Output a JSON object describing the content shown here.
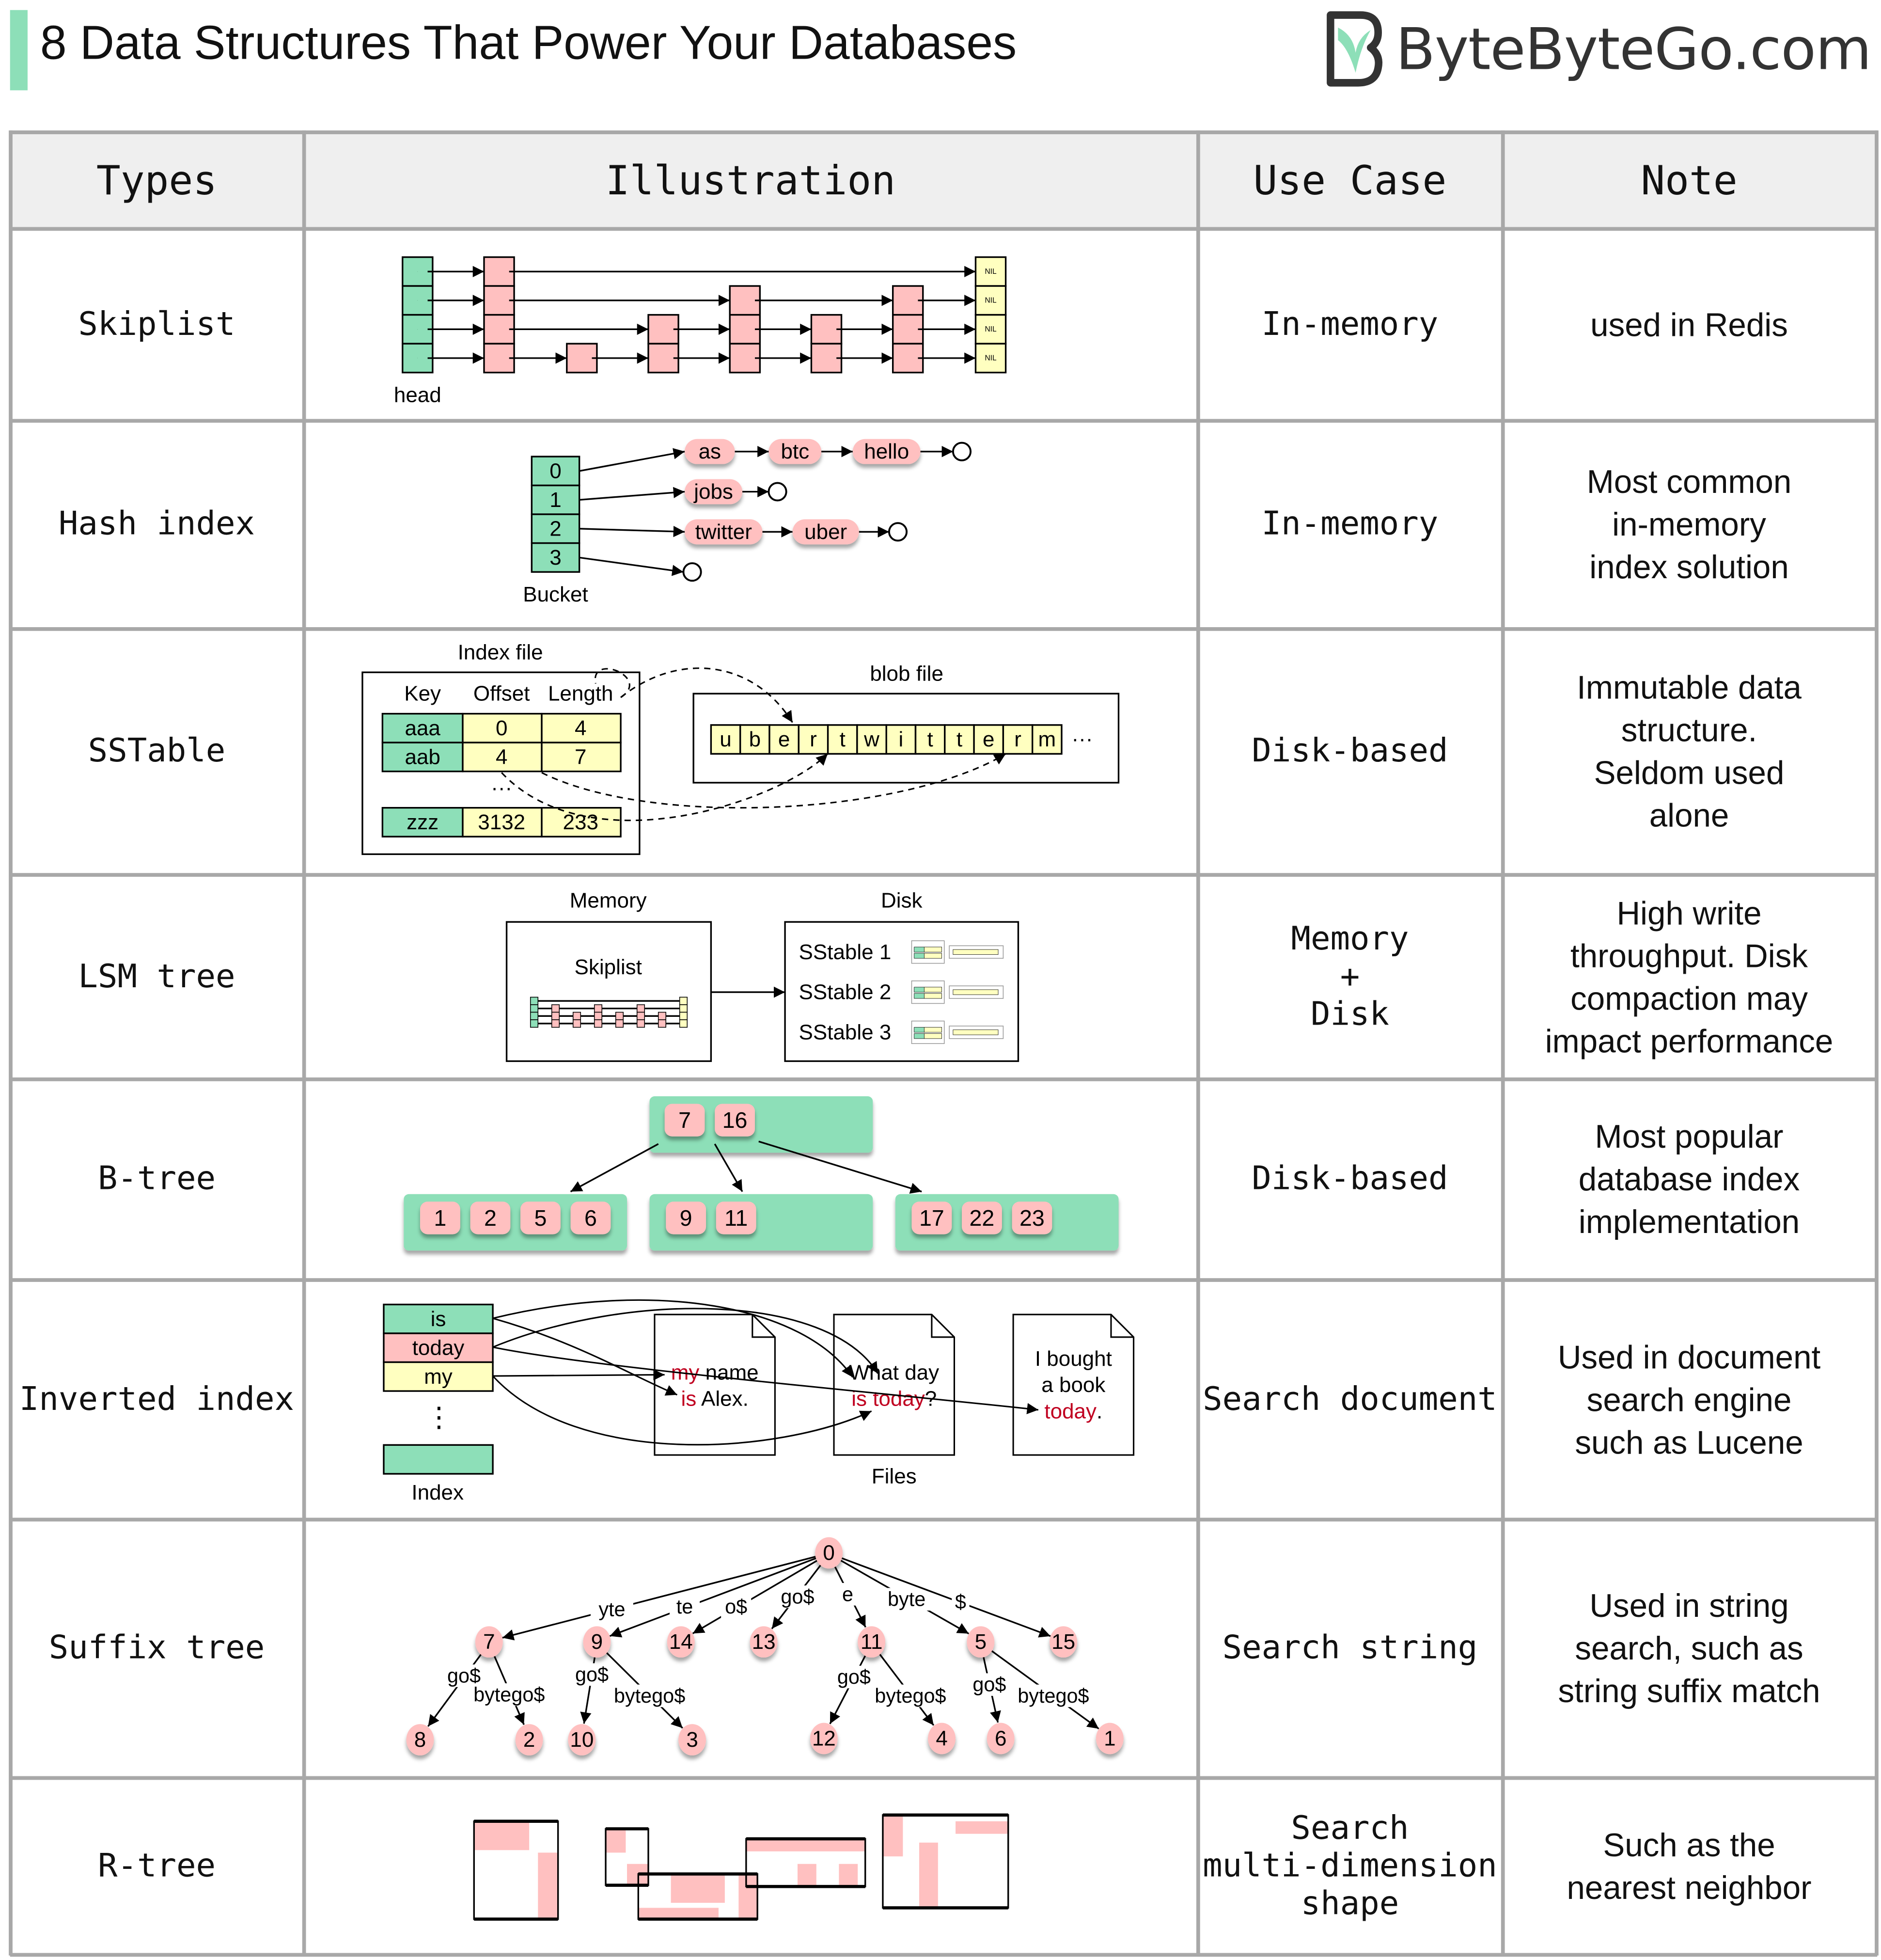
{
  "title": "8 Data Structures That Power Your Databases",
  "logo": {
    "text": "ByteByteGo.com",
    "icon": "bytebytego-logo-icon"
  },
  "colors": {
    "green": "#8ddfb8",
    "pink": "#ffc0c0",
    "yellow": "#ffffc0",
    "accent_red": "#c00020",
    "grid": "#a8a8a8",
    "header_bg": "#efefef"
  },
  "headers": [
    "Types",
    "Illustration",
    "Use Case",
    "Note"
  ],
  "rows": [
    {
      "type": "Skiplist",
      "use_case": [
        "In-memory"
      ],
      "note": [
        "used in Redis"
      ]
    },
    {
      "type": "Hash index",
      "use_case": [
        "In-memory"
      ],
      "note": [
        "Most common",
        "in-memory",
        "index solution"
      ]
    },
    {
      "type": "SSTable",
      "use_case": [
        "Disk-based"
      ],
      "note": [
        "Immutable data",
        "structure.",
        "Seldom used",
        "alone"
      ]
    },
    {
      "type": "LSM tree",
      "use_case": [
        "Memory",
        "+",
        "Disk"
      ],
      "note": [
        "High write",
        "throughput. Disk",
        "compaction may",
        "impact performance"
      ]
    },
    {
      "type": "B-tree",
      "use_case": [
        "Disk-based"
      ],
      "note": [
        "Most popular",
        "database index",
        "implementation"
      ]
    },
    {
      "type": "Inverted index",
      "use_case": [
        "Search document"
      ],
      "note": [
        "Used in document",
        "search engine",
        "such as Lucene"
      ]
    },
    {
      "type": "Suffix tree",
      "use_case": [
        "Search string"
      ],
      "note": [
        "Used in string",
        "search, such as",
        "string suffix match"
      ]
    },
    {
      "type": "R-tree",
      "use_case": [
        "Search",
        "multi-dimension",
        "shape"
      ],
      "note": [
        "Such as the",
        "nearest neighbor"
      ]
    }
  ],
  "skiplist": {
    "head_label": "head",
    "nil_label": "NIL"
  },
  "hash_index": {
    "buckets": [
      "0",
      "1",
      "2",
      "3"
    ],
    "bucket_label": "Bucket",
    "chains": [
      [
        "as",
        "btc",
        "hello"
      ],
      [
        "jobs"
      ],
      [
        "twitter",
        "uber"
      ],
      []
    ]
  },
  "sstable": {
    "index_label": "Index file",
    "columns": [
      "Key",
      "Offset",
      "Length"
    ],
    "rows": [
      [
        "aaa",
        "0",
        "4"
      ],
      [
        "aab",
        "4",
        "7"
      ],
      [
        "zzz",
        "3132",
        "233"
      ]
    ],
    "ellipsis": "···",
    "blob_label": "blob file",
    "blob_chars": [
      "u",
      "b",
      "e",
      "r",
      "t",
      "w",
      "i",
      "t",
      "t",
      "e",
      "r",
      "m"
    ],
    "blob_more": "···"
  },
  "lsm": {
    "memory_label": "Memory",
    "disk_label": "Disk",
    "skiplist_label": "Skiplist",
    "sstables": [
      "SStable 1",
      "SStable 2",
      "SStable 3"
    ]
  },
  "btree": {
    "root": [
      "7",
      "16"
    ],
    "leaves": [
      [
        "1",
        "2",
        "5",
        "6"
      ],
      [
        "9",
        "11"
      ],
      [
        "17",
        "22",
        "23"
      ]
    ]
  },
  "inverted": {
    "terms": [
      "is",
      "today",
      "my"
    ],
    "vdots": "⋮",
    "index_label": "Index",
    "files_label": "Files",
    "docs": [
      [
        [
          {
            "t": "my",
            "hl": true
          },
          {
            "t": " name",
            "hl": false
          }
        ],
        [
          {
            "t": "is",
            "hl": true
          },
          {
            "t": " Alex.",
            "hl": false
          }
        ]
      ],
      [
        [
          {
            "t": "What day",
            "hl": false
          }
        ],
        [
          {
            "t": "is today",
            "hl": true
          },
          {
            "t": "?",
            "hl": false
          }
        ]
      ],
      [
        [
          {
            "t": "I bought",
            "hl": false
          }
        ],
        [
          {
            "t": "a book",
            "hl": false
          }
        ],
        [
          {
            "t": "today",
            "hl": true
          },
          {
            "t": ".",
            "hl": false
          }
        ]
      ]
    ]
  },
  "suffix_tree": {
    "nodes": [
      "0",
      "7",
      "9",
      "14",
      "13",
      "11",
      "5",
      "15",
      "8",
      "2",
      "10",
      "3",
      "12",
      "4",
      "6",
      "1"
    ],
    "edges": [
      {
        "from": "0",
        "to": "7",
        "label": "yte"
      },
      {
        "from": "0",
        "to": "9",
        "label": "te"
      },
      {
        "from": "0",
        "to": "14",
        "label": "o$"
      },
      {
        "from": "0",
        "to": "13",
        "label": "go$"
      },
      {
        "from": "0",
        "to": "11",
        "label": "e"
      },
      {
        "from": "0",
        "to": "5",
        "label": "byte"
      },
      {
        "from": "0",
        "to": "15",
        "label": "$"
      },
      {
        "from": "7",
        "to": "8",
        "label": "go$"
      },
      {
        "from": "7",
        "to": "2",
        "label": "bytego$"
      },
      {
        "from": "9",
        "to": "10",
        "label": "go$"
      },
      {
        "from": "9",
        "to": "3",
        "label": "bytego$"
      },
      {
        "from": "11",
        "to": "12",
        "label": "go$"
      },
      {
        "from": "11",
        "to": "4",
        "label": "bytego$"
      },
      {
        "from": "5",
        "to": "6",
        "label": "go$"
      },
      {
        "from": "5",
        "to": "1",
        "label": "bytego$"
      }
    ]
  }
}
